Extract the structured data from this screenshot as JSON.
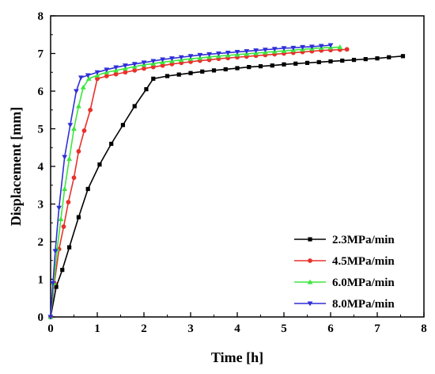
{
  "chart_data": {
    "type": "line",
    "xlabel": "Time [h]",
    "ylabel": "Displacement [mm]",
    "xlim": [
      0,
      8
    ],
    "ylim": [
      0,
      8
    ],
    "xticks": [
      "0",
      "1",
      "2",
      "3",
      "4",
      "5",
      "6",
      "7",
      "8"
    ],
    "yticks": [
      "0",
      "1",
      "2",
      "3",
      "4",
      "5",
      "6",
      "7",
      "8"
    ],
    "grid": false,
    "legend_position": "bottom-right",
    "series": [
      {
        "name": "2.3MPa/min",
        "color": "#000000",
        "marker": "square",
        "x": [
          0,
          0.12,
          0.25,
          0.4,
          0.6,
          0.8,
          1.05,
          1.3,
          1.55,
          1.8,
          2.05,
          2.2,
          2.5,
          2.75,
          3.0,
          3.25,
          3.5,
          3.75,
          4.0,
          4.25,
          4.5,
          4.75,
          5.0,
          5.25,
          5.5,
          5.75,
          6.0,
          6.25,
          6.5,
          6.75,
          7.0,
          7.25,
          7.55
        ],
        "y": [
          0,
          0.8,
          1.25,
          1.85,
          2.65,
          3.4,
          4.05,
          4.6,
          5.1,
          5.6,
          6.05,
          6.33,
          6.4,
          6.44,
          6.48,
          6.52,
          6.55,
          6.58,
          6.61,
          6.64,
          6.66,
          6.68,
          6.71,
          6.73,
          6.75,
          6.77,
          6.79,
          6.81,
          6.83,
          6.85,
          6.87,
          6.9,
          6.93
        ]
      },
      {
        "name": "4.5MPa/min",
        "color": "#e8312a",
        "marker": "circle",
        "x": [
          0,
          0.08,
          0.18,
          0.28,
          0.38,
          0.5,
          0.6,
          0.72,
          0.85,
          1.0,
          1.2,
          1.4,
          1.6,
          1.8,
          2.0,
          2.2,
          2.4,
          2.6,
          2.8,
          3.0,
          3.2,
          3.4,
          3.6,
          3.8,
          4.0,
          4.2,
          4.4,
          4.6,
          4.8,
          5.0,
          5.2,
          5.4,
          5.6,
          5.8,
          6.0,
          6.2,
          6.35
        ],
        "y": [
          0,
          0.9,
          1.8,
          2.4,
          3.05,
          3.7,
          4.4,
          4.95,
          5.5,
          6.33,
          6.4,
          6.45,
          6.5,
          6.55,
          6.6,
          6.64,
          6.68,
          6.72,
          6.75,
          6.78,
          6.81,
          6.83,
          6.86,
          6.88,
          6.9,
          6.92,
          6.94,
          6.96,
          6.98,
          7.0,
          7.02,
          7.04,
          7.06,
          7.08,
          7.09,
          7.1,
          7.11
        ]
      },
      {
        "name": "6.0MPa/min",
        "color": "#3ee63e",
        "marker": "triangle-up",
        "x": [
          0,
          0.07,
          0.14,
          0.22,
          0.3,
          0.4,
          0.5,
          0.6,
          0.7,
          0.82,
          1.0,
          1.2,
          1.4,
          1.6,
          1.8,
          2.0,
          2.2,
          2.4,
          2.6,
          2.8,
          3.0,
          3.2,
          3.4,
          3.6,
          3.8,
          4.0,
          4.2,
          4.4,
          4.6,
          4.8,
          5.0,
          5.2,
          5.4,
          5.6,
          5.8,
          6.0,
          6.2
        ],
        "y": [
          0,
          0.9,
          1.8,
          2.6,
          3.4,
          4.2,
          5.0,
          5.6,
          6.1,
          6.33,
          6.42,
          6.5,
          6.55,
          6.6,
          6.65,
          6.7,
          6.73,
          6.77,
          6.8,
          6.83,
          6.86,
          6.88,
          6.91,
          6.93,
          6.95,
          6.97,
          6.99,
          7.01,
          7.03,
          7.05,
          7.07,
          7.09,
          7.11,
          7.13,
          7.15,
          7.16,
          7.17
        ]
      },
      {
        "name": "8.0MPa/min",
        "color": "#2f2fd6",
        "marker": "triangle-down",
        "x": [
          0,
          0.05,
          0.1,
          0.18,
          0.3,
          0.42,
          0.55,
          0.65,
          0.8,
          1.0,
          1.2,
          1.4,
          1.6,
          1.8,
          2.0,
          2.2,
          2.4,
          2.6,
          2.8,
          3.0,
          3.2,
          3.4,
          3.6,
          3.8,
          4.0,
          4.2,
          4.4,
          4.6,
          4.8,
          5.0,
          5.2,
          5.4,
          5.6,
          5.8,
          6.0
        ],
        "y": [
          0,
          0.9,
          1.75,
          2.9,
          4.25,
          5.1,
          6.0,
          6.36,
          6.42,
          6.5,
          6.57,
          6.63,
          6.68,
          6.72,
          6.76,
          6.8,
          6.84,
          6.87,
          6.9,
          6.93,
          6.96,
          6.98,
          7.0,
          7.02,
          7.04,
          7.06,
          7.08,
          7.1,
          7.12,
          7.14,
          7.15,
          7.17,
          7.18,
          7.2,
          7.22
        ]
      }
    ]
  }
}
